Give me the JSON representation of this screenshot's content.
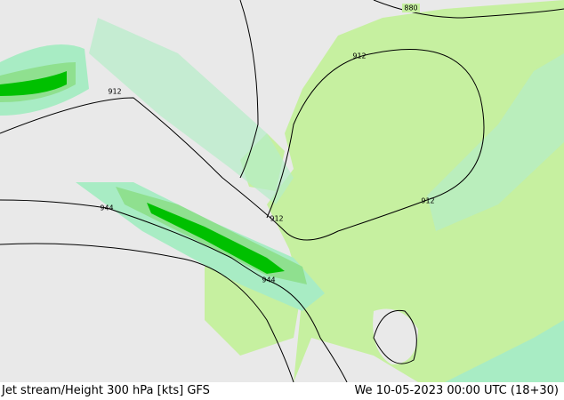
{
  "map": {
    "contour_labels": [
      "880",
      "912",
      "912",
      "912",
      "912",
      "944",
      "944"
    ],
    "footer": {
      "title": "Jet stream/Height 300 hPa [kts] GFS",
      "time": "We 10-05-2023 00:00 UTC (18+30)"
    }
  }
}
